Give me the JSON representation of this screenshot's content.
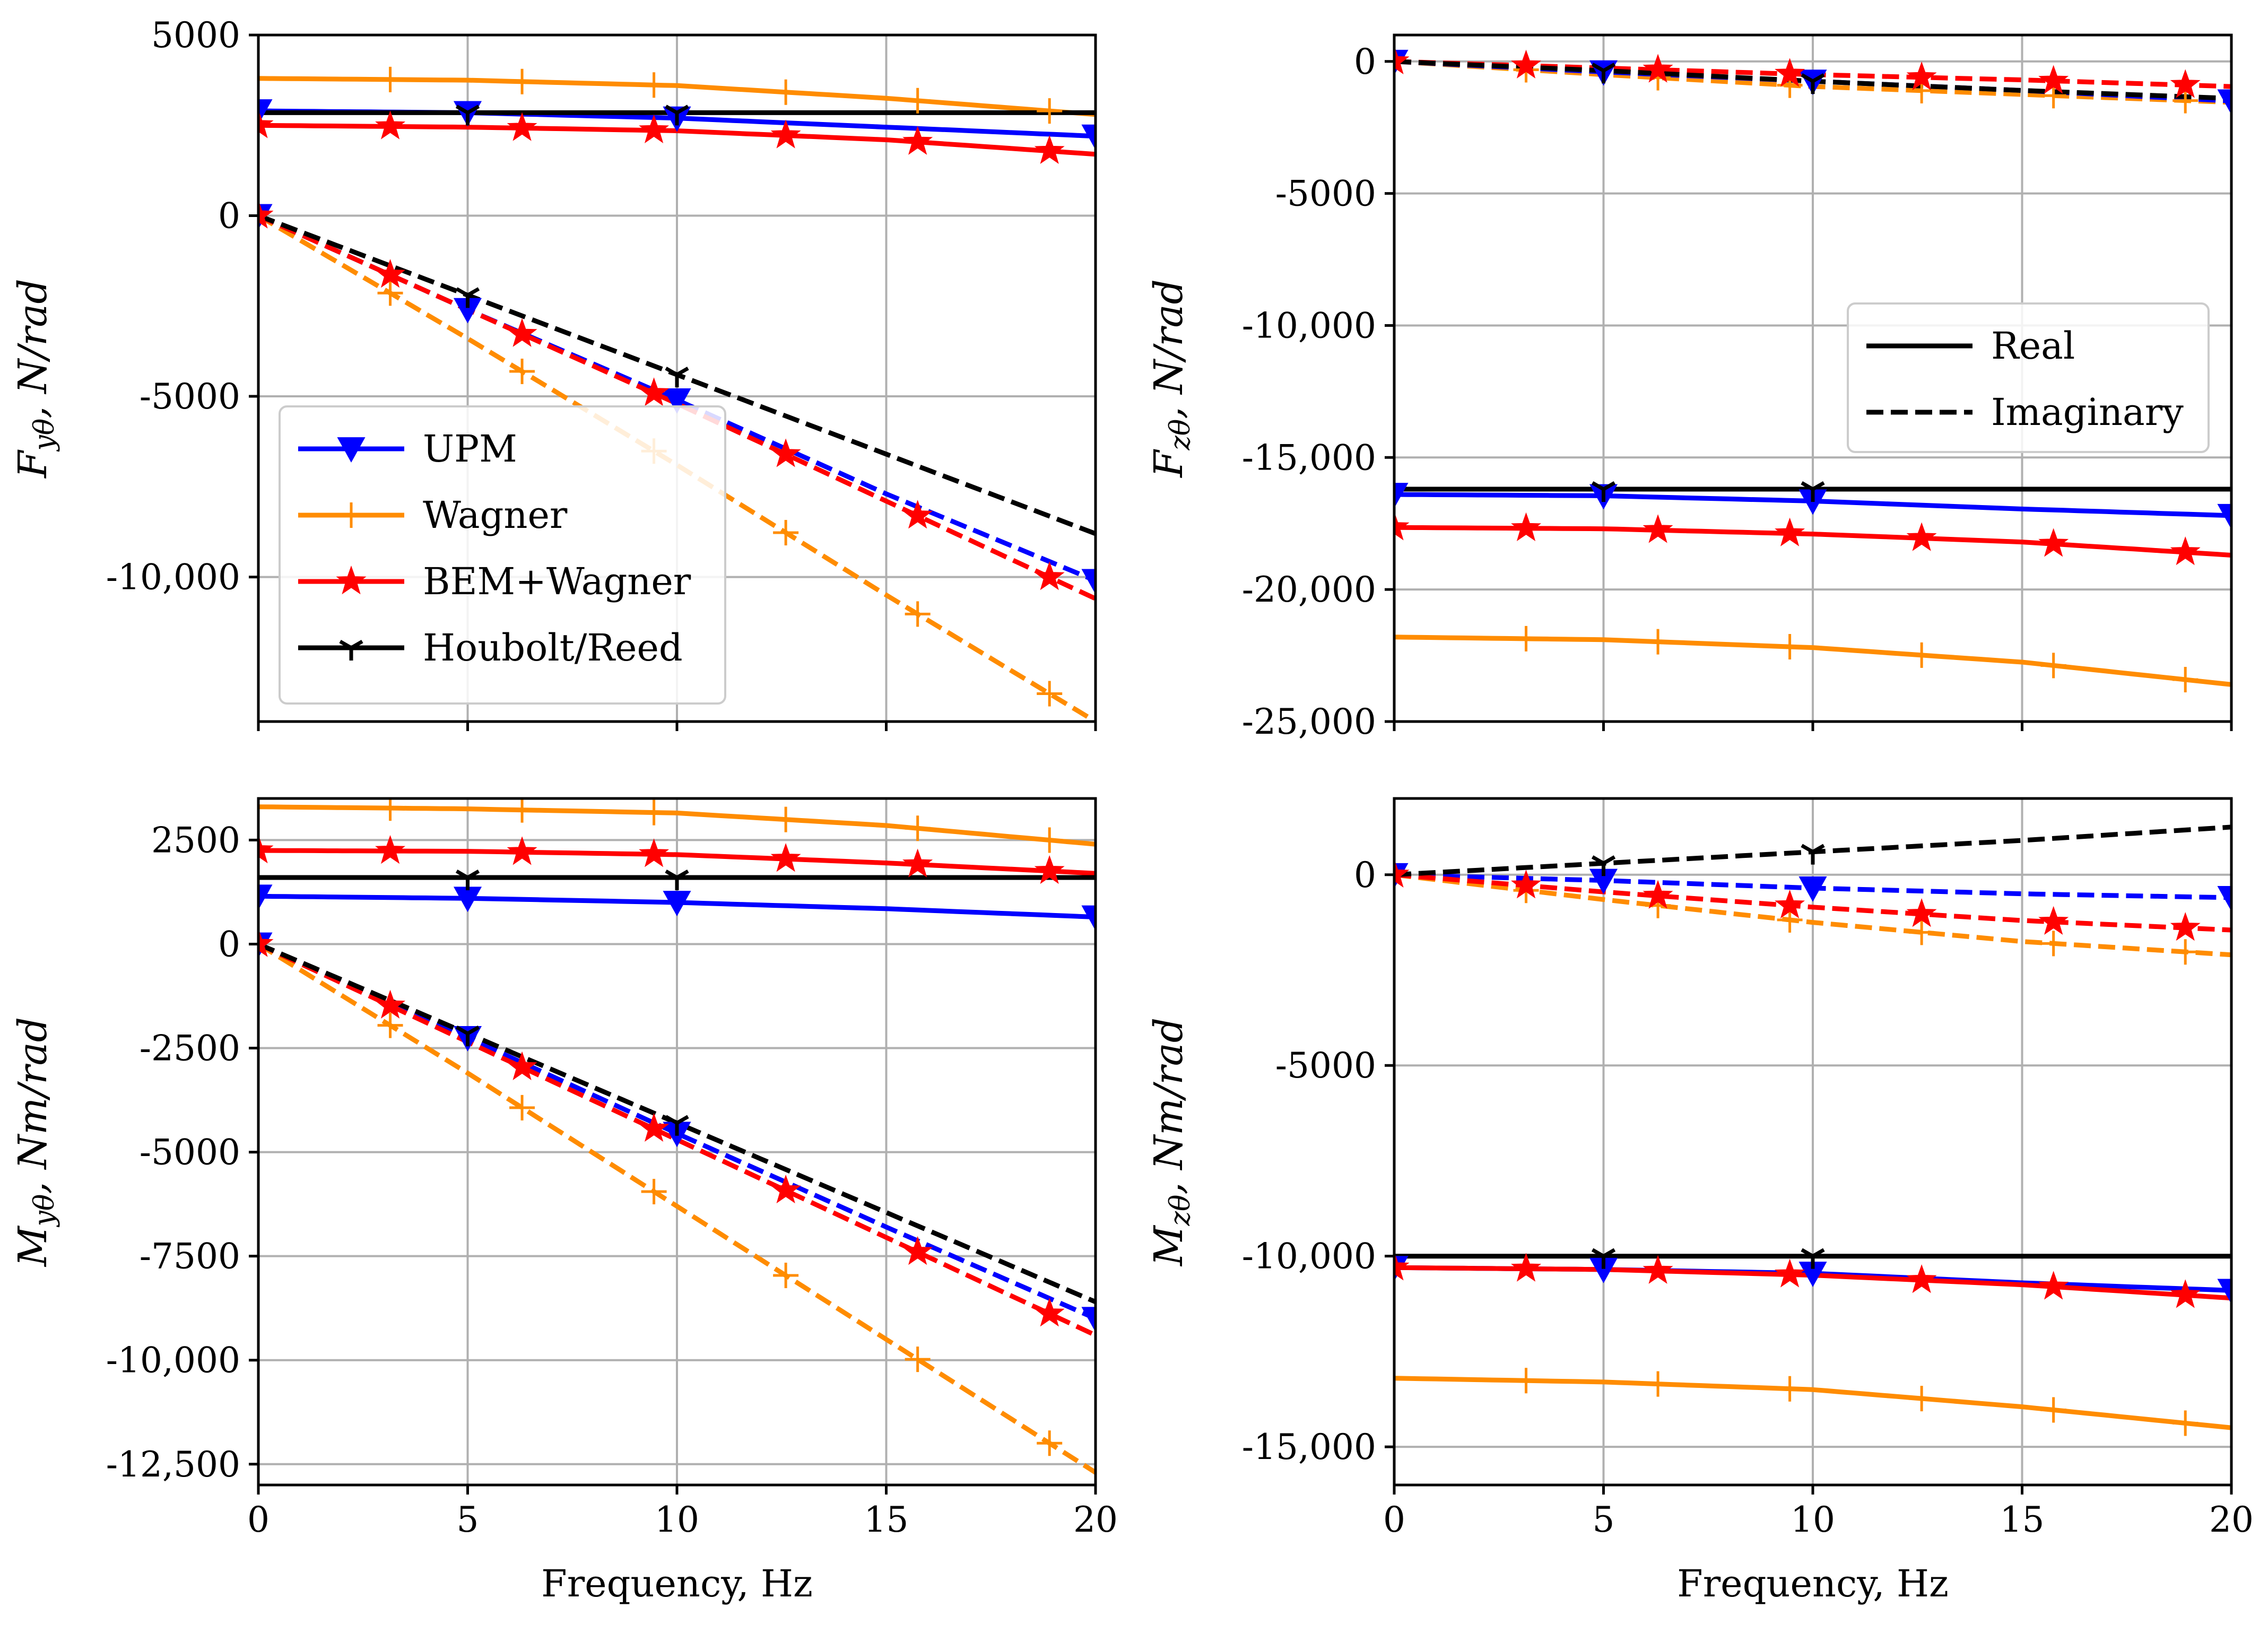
{
  "chart_data": [
    {
      "type": "line",
      "panel": "top-left",
      "ylabel": {
        "main": "F",
        "sub": "yθ",
        "unit": "N/rad"
      },
      "xlabel": "",
      "xlim": [
        0,
        20
      ],
      "ylim": [
        -14000,
        5000
      ],
      "xticks": [
        0,
        5,
        10,
        15,
        20
      ],
      "xtick_labels": [
        "",
        "",
        "",
        "",
        ""
      ],
      "yticks": [
        5000,
        0,
        -5000,
        -10000
      ],
      "ytick_labels": [
        "5000",
        "0",
        "-5000",
        "-10,000"
      ],
      "grid": true,
      "legend": {
        "placement": "lower-left",
        "entries": [
          {
            "label": "UPM",
            "color": "#0000ff",
            "marker": "triangle-down"
          },
          {
            "label": "Wagner",
            "color": "#ff8c00",
            "marker": "plus"
          },
          {
            "label": "BEM+Wagner",
            "color": "#ff0000",
            "marker": "star"
          },
          {
            "label": "Houbolt/Reed",
            "color": "#000000",
            "marker": "tri-down"
          }
        ]
      },
      "series": [
        {
          "name": "UPM",
          "part": "Real",
          "color": "#0000ff",
          "marker": "triangle-down",
          "x": [
            0,
            5,
            10,
            15,
            20
          ],
          "y": [
            2900,
            2850,
            2700,
            2450,
            2200
          ],
          "markers_at": [
            0,
            5,
            10,
            20
          ]
        },
        {
          "name": "UPM",
          "part": "Imaginary",
          "color": "#0000ff",
          "marker": "triangle-down",
          "x": [
            0,
            5,
            10,
            15,
            20
          ],
          "y": [
            0,
            -2600,
            -5100,
            -7700,
            -10100
          ],
          "markers_at": [
            0,
            5,
            10,
            20
          ]
        },
        {
          "name": "Wagner",
          "part": "Real",
          "color": "#ff8c00",
          "marker": "plus",
          "x": [
            0,
            5,
            10,
            15,
            20
          ],
          "y": [
            3800,
            3750,
            3600,
            3250,
            2800
          ],
          "markers_at": [
            3.15,
            6.3,
            9.45,
            12.6,
            15.75,
            18.9
          ]
        },
        {
          "name": "Wagner",
          "part": "Imaginary",
          "color": "#ff8c00",
          "marker": "plus",
          "x": [
            0,
            5,
            10,
            15,
            20
          ],
          "y": [
            0,
            -3400,
            -6900,
            -10500,
            -14000
          ],
          "markers_at": [
            3.15,
            6.3,
            9.45,
            12.6,
            15.75,
            18.9
          ]
        },
        {
          "name": "BEM+Wagner",
          "part": "Real",
          "color": "#ff0000",
          "marker": "star",
          "x": [
            0,
            5,
            10,
            15,
            20
          ],
          "y": [
            2500,
            2450,
            2350,
            2100,
            1700
          ],
          "markers_at": [
            0,
            3.15,
            6.3,
            9.45,
            12.6,
            15.75,
            18.9
          ]
        },
        {
          "name": "BEM+Wagner",
          "part": "Imaginary",
          "color": "#ff0000",
          "marker": "star",
          "x": [
            0,
            5,
            10,
            15,
            20
          ],
          "y": [
            0,
            -2600,
            -5200,
            -7900,
            -10600
          ],
          "markers_at": [
            0,
            3.15,
            6.3,
            9.45,
            12.6,
            15.75,
            18.9
          ]
        },
        {
          "name": "Houbolt/Reed",
          "part": "Real",
          "color": "#000000",
          "marker": "tri-down",
          "x": [
            0,
            20
          ],
          "y": [
            2850,
            2850
          ],
          "markers_at": [
            5,
            10
          ]
        },
        {
          "name": "Houbolt/Reed",
          "part": "Imaginary",
          "color": "#000000",
          "marker": "tri-down",
          "x": [
            0,
            5,
            10,
            15,
            20
          ],
          "y": [
            0,
            -2200,
            -4400,
            -6600,
            -8800
          ],
          "markers_at": [
            5,
            10
          ]
        }
      ]
    },
    {
      "type": "line",
      "panel": "top-right",
      "ylabel": {
        "main": "F",
        "sub": "zθ",
        "unit": "N/rad"
      },
      "xlabel": "",
      "xlim": [
        0,
        20
      ],
      "ylim": [
        -25000,
        1000
      ],
      "xticks": [
        0,
        5,
        10,
        15,
        20
      ],
      "xtick_labels": [
        "",
        "",
        "",
        "",
        ""
      ],
      "yticks": [
        0,
        -5000,
        -10000,
        -15000,
        -20000,
        -25000
      ],
      "ytick_labels": [
        "0",
        "-5000",
        "-10,000",
        "-15,000",
        "-20,000",
        "-25,000"
      ],
      "grid": true,
      "legend": {
        "placement": "center-right",
        "entries": [
          {
            "label": "Real",
            "color": "#000000",
            "style": "solid"
          },
          {
            "label": "Imaginary",
            "color": "#000000",
            "style": "dashed"
          }
        ]
      },
      "series": [
        {
          "name": "UPM",
          "part": "Real",
          "color": "#0000ff",
          "marker": "triangle-down",
          "x": [
            0,
            5,
            10,
            15,
            20
          ],
          "y": [
            -16400,
            -16450,
            -16650,
            -16950,
            -17200
          ],
          "markers_at": [
            0,
            5,
            10,
            20
          ]
        },
        {
          "name": "UPM",
          "part": "Imaginary",
          "color": "#0000ff",
          "marker": "triangle-down",
          "x": [
            0,
            5,
            10,
            15,
            20
          ],
          "y": [
            0,
            -400,
            -750,
            -1100,
            -1500
          ],
          "markers_at": [
            0,
            5,
            10,
            20
          ]
        },
        {
          "name": "Wagner",
          "part": "Real",
          "color": "#ff8c00",
          "marker": "plus",
          "x": [
            0,
            5,
            10,
            15,
            20
          ],
          "y": [
            -21800,
            -21900,
            -22200,
            -22750,
            -23600
          ],
          "markers_at": [
            3.15,
            6.3,
            9.45,
            12.6,
            15.75,
            18.9
          ]
        },
        {
          "name": "Wagner",
          "part": "Imaginary",
          "color": "#ff8c00",
          "marker": "plus",
          "x": [
            0,
            5,
            10,
            15,
            20
          ],
          "y": [
            0,
            -500,
            -950,
            -1250,
            -1550
          ],
          "markers_at": [
            3.15,
            6.3,
            9.45,
            12.6,
            15.75,
            18.9
          ]
        },
        {
          "name": "BEM+Wagner",
          "part": "Real",
          "color": "#ff0000",
          "marker": "star",
          "x": [
            0,
            5,
            10,
            15,
            20
          ],
          "y": [
            -17650,
            -17700,
            -17900,
            -18200,
            -18700
          ],
          "markers_at": [
            0,
            3.15,
            6.3,
            9.45,
            12.6,
            15.75,
            18.9
          ]
        },
        {
          "name": "BEM+Wagner",
          "part": "Imaginary",
          "color": "#ff0000",
          "marker": "star",
          "x": [
            0,
            5,
            10,
            15,
            20
          ],
          "y": [
            0,
            -250,
            -500,
            -700,
            -950
          ],
          "markers_at": [
            0,
            3.15,
            6.3,
            9.45,
            12.6,
            15.75,
            18.9
          ]
        },
        {
          "name": "Houbolt/Reed",
          "part": "Real",
          "color": "#000000",
          "marker": "tri-down",
          "x": [
            0,
            20
          ],
          "y": [
            -16200,
            -16200
          ],
          "markers_at": [
            5,
            10
          ]
        },
        {
          "name": "Houbolt/Reed",
          "part": "Imaginary",
          "color": "#000000",
          "marker": "tri-down",
          "x": [
            0,
            5,
            10,
            15,
            20
          ],
          "y": [
            0,
            -350,
            -750,
            -1100,
            -1400
          ],
          "markers_at": [
            5,
            10
          ]
        }
      ]
    },
    {
      "type": "line",
      "panel": "bottom-left",
      "ylabel": {
        "main": "M",
        "sub": "yθ",
        "unit": "Nm/rad"
      },
      "xlabel": "Frequency, Hz",
      "xlim": [
        0,
        20
      ],
      "ylim": [
        -13000,
        3500
      ],
      "xticks": [
        0,
        5,
        10,
        15,
        20
      ],
      "xtick_labels": [
        "0",
        "5",
        "10",
        "15",
        "20"
      ],
      "yticks": [
        2500,
        0,
        -2500,
        -5000,
        -7500,
        -10000,
        -12500
      ],
      "ytick_labels": [
        "2500",
        "0",
        "-2500",
        "-5000",
        "-7500",
        "-10,000",
        "-12,500"
      ],
      "grid": true,
      "series": [
        {
          "name": "UPM",
          "part": "Real",
          "color": "#0000ff",
          "marker": "triangle-down",
          "x": [
            0,
            5,
            10,
            15,
            20
          ],
          "y": [
            1150,
            1100,
            1000,
            850,
            650
          ],
          "markers_at": [
            0,
            5,
            10,
            20
          ]
        },
        {
          "name": "UPM",
          "part": "Imaginary",
          "color": "#0000ff",
          "marker": "triangle-down",
          "x": [
            0,
            5,
            10,
            15,
            20
          ],
          "y": [
            0,
            -2250,
            -4550,
            -6800,
            -9000
          ],
          "markers_at": [
            0,
            5,
            10,
            20
          ]
        },
        {
          "name": "Wagner",
          "part": "Real",
          "color": "#ff8c00",
          "marker": "plus",
          "x": [
            0,
            5,
            10,
            15,
            20
          ],
          "y": [
            3300,
            3250,
            3150,
            2850,
            2400
          ],
          "markers_at": [
            3.15,
            6.3,
            9.45,
            12.6,
            15.75,
            18.9
          ]
        },
        {
          "name": "Wagner",
          "part": "Imaginary",
          "color": "#ff8c00",
          "marker": "plus",
          "x": [
            0,
            5,
            10,
            15,
            20
          ],
          "y": [
            0,
            -3100,
            -6300,
            -9500,
            -12700
          ],
          "markers_at": [
            3.15,
            6.3,
            9.45,
            12.6,
            15.75,
            18.9
          ]
        },
        {
          "name": "BEM+Wagner",
          "part": "Real",
          "color": "#ff0000",
          "marker": "star",
          "x": [
            0,
            5,
            10,
            15,
            20
          ],
          "y": [
            2250,
            2230,
            2150,
            1950,
            1700
          ],
          "markers_at": [
            0,
            3.15,
            6.3,
            9.45,
            12.6,
            15.75,
            18.9
          ]
        },
        {
          "name": "BEM+Wagner",
          "part": "Imaginary",
          "color": "#ff0000",
          "marker": "star",
          "x": [
            0,
            5,
            10,
            15,
            20
          ],
          "y": [
            0,
            -2350,
            -4700,
            -7050,
            -9400
          ],
          "markers_at": [
            0,
            3.15,
            6.3,
            9.45,
            12.6,
            15.75,
            18.9
          ]
        },
        {
          "name": "Houbolt/Reed",
          "part": "Real",
          "color": "#000000",
          "marker": "tri-down",
          "x": [
            0,
            20
          ],
          "y": [
            1600,
            1600
          ],
          "markers_at": [
            5,
            10
          ]
        },
        {
          "name": "Houbolt/Reed",
          "part": "Imaginary",
          "color": "#000000",
          "marker": "tri-down",
          "x": [
            0,
            5,
            10,
            15,
            20
          ],
          "y": [
            0,
            -2150,
            -4300,
            -6450,
            -8600
          ],
          "markers_at": [
            5,
            10
          ]
        }
      ]
    },
    {
      "type": "line",
      "panel": "bottom-right",
      "ylabel": {
        "main": "M",
        "sub": "zθ",
        "unit": "Nm/rad"
      },
      "xlabel": "Frequency, Hz",
      "xlim": [
        0,
        20
      ],
      "ylim": [
        -16000,
        2000
      ],
      "xticks": [
        0,
        5,
        10,
        15,
        20
      ],
      "xtick_labels": [
        "0",
        "5",
        "10",
        "15",
        "20"
      ],
      "yticks": [
        0,
        -5000,
        -10000,
        -15000
      ],
      "ytick_labels": [
        "0",
        "-5000",
        "-10,000",
        "-15,000"
      ],
      "grid": true,
      "series": [
        {
          "name": "UPM",
          "part": "Real",
          "color": "#0000ff",
          "marker": "triangle-down",
          "x": [
            0,
            5,
            10,
            15,
            20
          ],
          "y": [
            -10300,
            -10350,
            -10450,
            -10700,
            -10900
          ],
          "markers_at": [
            0,
            5,
            10,
            20
          ]
        },
        {
          "name": "UPM",
          "part": "Imaginary",
          "color": "#0000ff",
          "marker": "triangle-down",
          "x": [
            0,
            5,
            10,
            15,
            20
          ],
          "y": [
            0,
            -150,
            -350,
            -500,
            -600
          ],
          "markers_at": [
            0,
            5,
            10,
            20
          ]
        },
        {
          "name": "Wagner",
          "part": "Real",
          "color": "#ff8c00",
          "marker": "plus",
          "x": [
            0,
            5,
            10,
            15,
            20
          ],
          "y": [
            -13200,
            -13300,
            -13500,
            -13950,
            -14500
          ],
          "markers_at": [
            3.15,
            6.3,
            9.45,
            12.6,
            15.75,
            18.9
          ]
        },
        {
          "name": "Wagner",
          "part": "Imaginary",
          "color": "#ff8c00",
          "marker": "plus",
          "x": [
            0,
            5,
            10,
            15,
            20
          ],
          "y": [
            0,
            -650,
            -1250,
            -1750,
            -2100
          ],
          "markers_at": [
            3.15,
            6.3,
            9.45,
            12.6,
            15.75,
            18.9
          ]
        },
        {
          "name": "BEM+Wagner",
          "part": "Real",
          "color": "#ff0000",
          "marker": "star",
          "x": [
            0,
            5,
            10,
            15,
            20
          ],
          "y": [
            -10300,
            -10350,
            -10500,
            -10750,
            -11100
          ],
          "markers_at": [
            0,
            3.15,
            6.3,
            9.45,
            12.6,
            15.75,
            18.9
          ]
        },
        {
          "name": "BEM+Wagner",
          "part": "Imaginary",
          "color": "#ff0000",
          "marker": "star",
          "x": [
            0,
            5,
            10,
            15,
            20
          ],
          "y": [
            0,
            -450,
            -850,
            -1200,
            -1450
          ],
          "markers_at": [
            0,
            3.15,
            6.3,
            9.45,
            12.6,
            15.75,
            18.9
          ]
        },
        {
          "name": "Houbolt/Reed",
          "part": "Real",
          "color": "#000000",
          "marker": "tri-down",
          "x": [
            0,
            20
          ],
          "y": [
            -10000,
            -10000
          ],
          "markers_at": [
            5,
            10
          ]
        },
        {
          "name": "Houbolt/Reed",
          "part": "Imaginary",
          "color": "#000000",
          "marker": "tri-down",
          "x": [
            0,
            5,
            10,
            15,
            20
          ],
          "y": [
            0,
            300,
            600,
            900,
            1250
          ],
          "markers_at": [
            5,
            10
          ]
        }
      ]
    }
  ]
}
